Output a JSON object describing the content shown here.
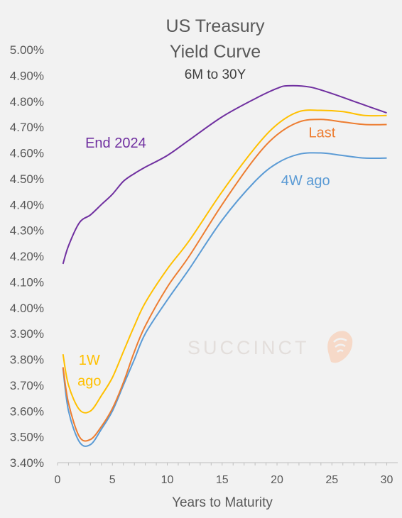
{
  "chart_data": {
    "type": "line",
    "title": [
      "US Treasury",
      "Yield Curve"
    ],
    "subtitle": "6M to 30Y",
    "xlabel": "Years to Maturity",
    "ylabel": "",
    "xlim": [
      0,
      31
    ],
    "ylim": [
      3.4,
      5.0
    ],
    "x_ticks": [
      0,
      5,
      10,
      15,
      20,
      25,
      30
    ],
    "y_ticks": [
      "5.00%",
      "4.90%",
      "4.80%",
      "4.70%",
      "4.60%",
      "4.50%",
      "4.40%",
      "4.30%",
      "4.20%",
      "4.10%",
      "4.00%",
      "3.90%",
      "3.80%",
      "3.70%",
      "3.60%",
      "3.50%",
      "3.40%"
    ],
    "grid": false,
    "series": [
      {
        "name": "End 2024",
        "color": "#7030a0",
        "points": [
          [
            0.5,
            4.17
          ],
          [
            1,
            4.24
          ],
          [
            2,
            4.33
          ],
          [
            3,
            4.36
          ],
          [
            4,
            4.4
          ],
          [
            5,
            4.44
          ],
          [
            6,
            4.49
          ],
          [
            7,
            4.52
          ],
          [
            8,
            4.545
          ],
          [
            10,
            4.59
          ],
          [
            12,
            4.65
          ],
          [
            15,
            4.74
          ],
          [
            18,
            4.81
          ],
          [
            20,
            4.85
          ],
          [
            21,
            4.86
          ],
          [
            23,
            4.855
          ],
          [
            25,
            4.83
          ],
          [
            27,
            4.8
          ],
          [
            30,
            4.755
          ]
        ]
      },
      {
        "name": "1W ago",
        "color": "#ffc000",
        "label_lines": [
          "1W",
          "ago"
        ],
        "points": [
          [
            0.5,
            3.82
          ],
          [
            1,
            3.7
          ],
          [
            2,
            3.605
          ],
          [
            3,
            3.6
          ],
          [
            4,
            3.66
          ],
          [
            5,
            3.73
          ],
          [
            6,
            3.83
          ],
          [
            7,
            3.93
          ],
          [
            8,
            4.02
          ],
          [
            10,
            4.15
          ],
          [
            12,
            4.26
          ],
          [
            15,
            4.45
          ],
          [
            18,
            4.62
          ],
          [
            20,
            4.71
          ],
          [
            22,
            4.76
          ],
          [
            24,
            4.765
          ],
          [
            26,
            4.76
          ],
          [
            28,
            4.745
          ],
          [
            30,
            4.745
          ]
        ]
      },
      {
        "name": "Last",
        "color": "#ed7d31",
        "points": [
          [
            0.5,
            3.77
          ],
          [
            1,
            3.63
          ],
          [
            2,
            3.5
          ],
          [
            3,
            3.49
          ],
          [
            4,
            3.54
          ],
          [
            5,
            3.61
          ],
          [
            6,
            3.71
          ],
          [
            7,
            3.83
          ],
          [
            8,
            3.93
          ],
          [
            10,
            4.08
          ],
          [
            12,
            4.2
          ],
          [
            15,
            4.4
          ],
          [
            18,
            4.58
          ],
          [
            20,
            4.67
          ],
          [
            22,
            4.72
          ],
          [
            24,
            4.73
          ],
          [
            26,
            4.72
          ],
          [
            28,
            4.71
          ],
          [
            30,
            4.71
          ]
        ]
      },
      {
        "name": "4W ago",
        "color": "#5b9bd5",
        "points": [
          [
            0.5,
            3.765
          ],
          [
            1,
            3.6
          ],
          [
            2,
            3.48
          ],
          [
            3,
            3.47
          ],
          [
            4,
            3.53
          ],
          [
            5,
            3.6
          ],
          [
            6,
            3.7
          ],
          [
            7,
            3.8
          ],
          [
            8,
            3.9
          ],
          [
            10,
            4.03
          ],
          [
            12,
            4.15
          ],
          [
            15,
            4.34
          ],
          [
            18,
            4.49
          ],
          [
            20,
            4.56
          ],
          [
            22,
            4.595
          ],
          [
            24,
            4.6
          ],
          [
            26,
            4.59
          ],
          [
            28,
            4.58
          ],
          [
            30,
            4.58
          ]
        ]
      }
    ]
  },
  "watermark": {
    "text": "SUCCINCT"
  }
}
